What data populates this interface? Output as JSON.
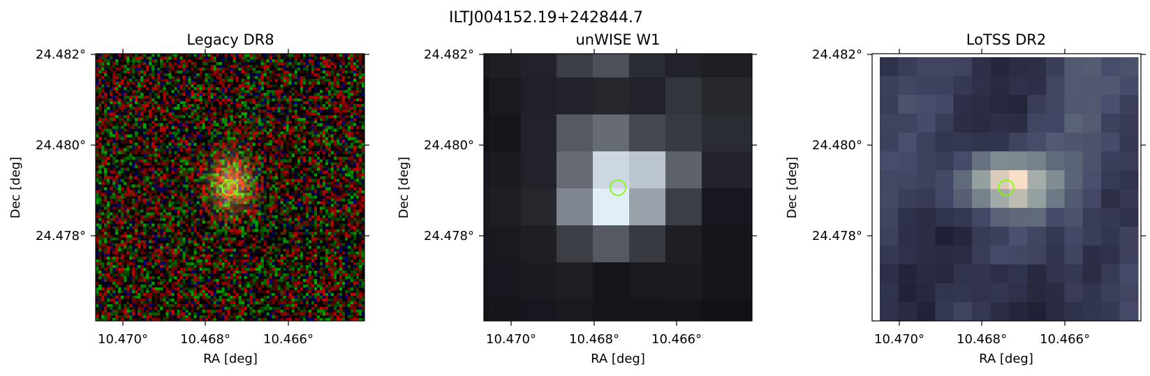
{
  "figure": {
    "title": "ILTJ004152.19+242844.7"
  },
  "panels": [
    {
      "title": "Legacy DR8",
      "xlabel": "RA [deg]",
      "ylabel": "Dec [deg]",
      "xticks": [
        "10.470°",
        "10.468°",
        "10.466°"
      ],
      "yticks": [
        "24.482°",
        "24.480°",
        "24.478°"
      ],
      "image_kind": "rgb-noise-with-galaxy"
    },
    {
      "title": "unWISE W1",
      "xlabel": "RA [deg]",
      "ylabel": "Dec [deg]",
      "xticks": [
        "10.470°",
        "10.468°",
        "10.466°"
      ],
      "yticks": [
        "24.482°",
        "24.480°",
        "24.478°"
      ],
      "image_kind": "grayscale-pixels"
    },
    {
      "title": "LoTSS DR2",
      "xlabel": "RA [deg]",
      "ylabel": "Dec [deg]",
      "xticks": [
        "10.470°",
        "10.468°",
        "10.466°"
      ],
      "yticks": [
        "24.482°",
        "24.480°",
        "24.478°"
      ],
      "image_kind": "bone-pixels-rotated"
    }
  ],
  "marker": {
    "shape": "circle",
    "color": "#7fff00",
    "ra": 10.4674,
    "dec": 24.4791
  },
  "colors": {
    "marker": "#7fff00",
    "axis": "#000000"
  }
}
